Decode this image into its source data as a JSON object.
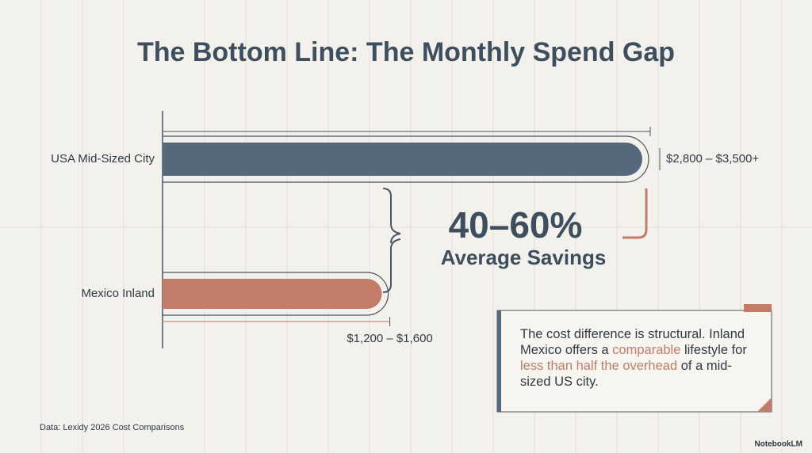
{
  "chart_data": {
    "type": "bar",
    "orientation": "horizontal",
    "title": "The Bottom Line: The Monthly Spend Gap",
    "categories": [
      "USA Mid-Sized City",
      "Mexico Inland"
    ],
    "values": [
      3500,
      1600
    ],
    "value_labels": [
      "$2,800 – $3,500+",
      "$1,200 – $1,600"
    ],
    "colors": [
      "#56687b",
      "#c27c67"
    ],
    "xlim": [
      0,
      3500
    ],
    "annotation": {
      "value": "40–60%",
      "label": "Average Savings"
    },
    "note": [
      "The cost difference is structural. Inland Mexico offers a ",
      "comparable",
      " lifestyle for ",
      "less than half the overhead",
      " of a mid-sized US city."
    ],
    "source": "Data: Lexidy 2026 Cost Comparisons",
    "brand": "NotebookLM"
  }
}
